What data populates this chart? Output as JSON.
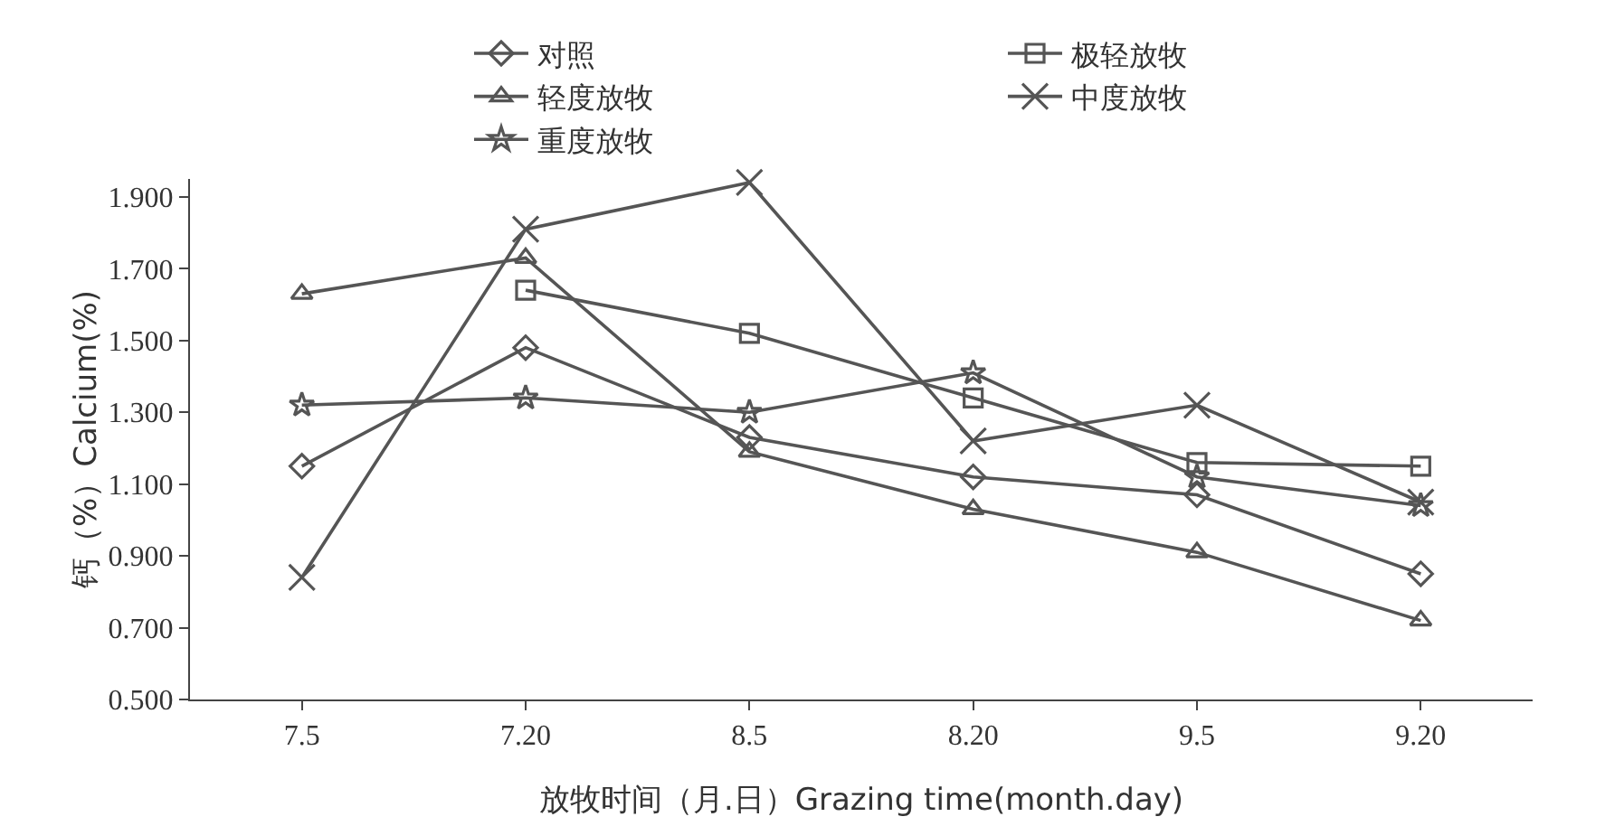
{
  "chart_data": {
    "type": "line",
    "xlabel": "放牧时间（月.日）Grazing time(month.day)",
    "ylabel": "钙（%）Calcium(%)",
    "categories": [
      "7.5",
      "7.20",
      "8.5",
      "8.20",
      "9.5",
      "9.20"
    ],
    "ylim": [
      0.5,
      1.95
    ],
    "yticks": [
      {
        "value": 0.5,
        "label": "0.500"
      },
      {
        "value": 0.7,
        "label": "0.700"
      },
      {
        "value": 0.9,
        "label": "0.900"
      },
      {
        "value": 1.1,
        "label": "1.100"
      },
      {
        "value": 1.3,
        "label": "1.300"
      },
      {
        "value": 1.5,
        "label": "1.500"
      },
      {
        "value": 1.7,
        "label": "1.700"
      },
      {
        "value": 1.9,
        "label": "1.900"
      }
    ],
    "grid": false,
    "legend": "top right",
    "line_style": "solid",
    "series": [
      {
        "name": "对照",
        "color": "#555555",
        "marker": "diamond",
        "values": [
          1.15,
          1.48,
          1.23,
          1.12,
          1.07,
          0.85
        ]
      },
      {
        "name": "极轻放牧",
        "color": "#555555",
        "marker": "square",
        "values": [
          null,
          1.64,
          1.52,
          1.34,
          1.16,
          1.15
        ]
      },
      {
        "name": "轻度放牧",
        "color": "#555555",
        "marker": "triangle",
        "values": [
          1.63,
          1.73,
          1.19,
          1.03,
          0.91,
          0.72
        ]
      },
      {
        "name": "中度放牧",
        "color": "#555555",
        "marker": "cross",
        "values": [
          0.84,
          1.81,
          1.94,
          1.22,
          1.32,
          1.05
        ]
      },
      {
        "name": "重度放牧",
        "color": "#555555",
        "marker": "star",
        "values": [
          1.32,
          1.34,
          1.3,
          1.41,
          1.12,
          1.04
        ]
      }
    ]
  }
}
